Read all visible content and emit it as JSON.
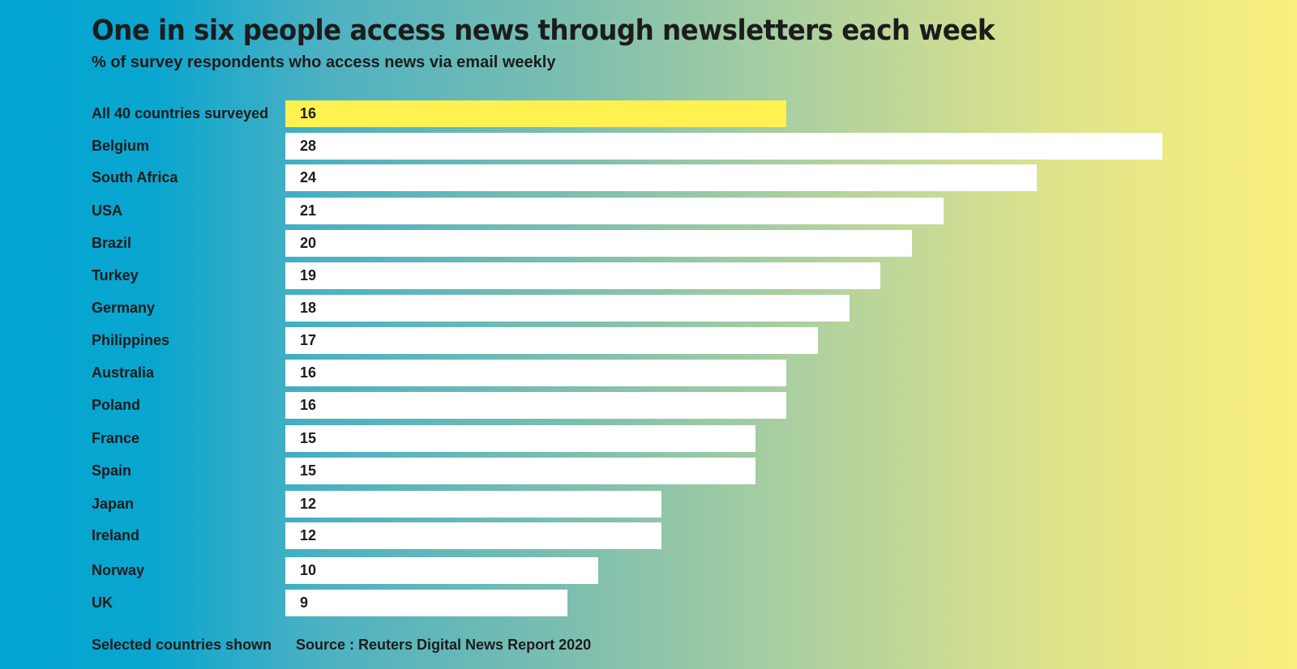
{
  "chart_data": {
    "type": "bar",
    "orientation": "horizontal",
    "title": "One in six people access news through newsletters each week",
    "subtitle": "% of survey respondents who access news via email weekly",
    "categories": [
      "All 40 countries surveyed",
      "Belgium",
      "South Africa",
      "USA",
      "Brazil",
      "Turkey",
      "Germany",
      "Philippines",
      "Australia",
      "Poland",
      "France",
      "Spain",
      "Japan",
      "Ireland",
      "Norway",
      "UK"
    ],
    "values": [
      16,
      28,
      24,
      21,
      20,
      19,
      18,
      17,
      16,
      16,
      15,
      15,
      12,
      12,
      10,
      9
    ],
    "highlight_index": 0,
    "xlim": [
      0,
      28
    ],
    "colors": {
      "bar": "#ffffff",
      "highlight": "#fef150",
      "bg_left": "#00a5d2",
      "bg_right": "#faef7d"
    }
  },
  "footer": {
    "note": "Selected countries shown",
    "source": "Source : Reuters Digital News Report 2020"
  }
}
